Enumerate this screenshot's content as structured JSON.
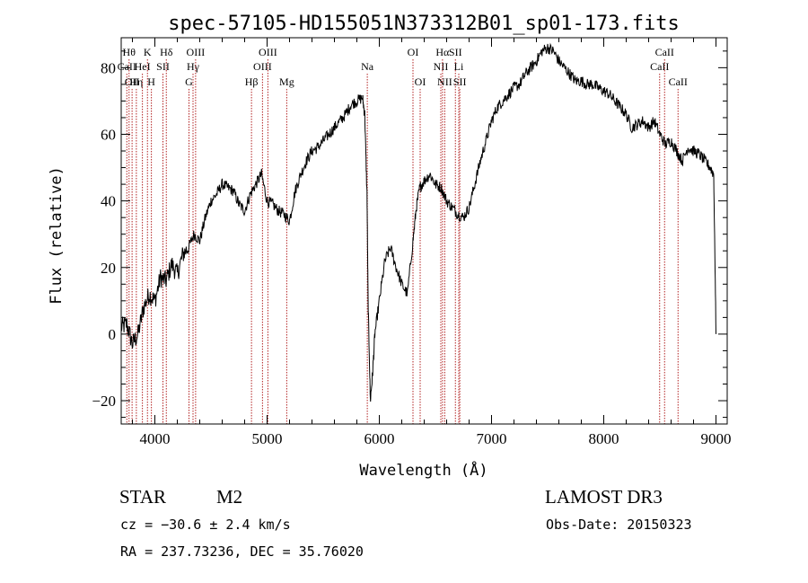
{
  "chart_data": {
    "type": "line",
    "title": "spec-57105-HD155051N373312B01_sp01-173.fits",
    "xlabel": "Wavelength (Å)",
    "ylabel": "Flux (relative)",
    "xlim": [
      3700,
      9100
    ],
    "ylim": [
      -27,
      89
    ],
    "xticks": [
      4000,
      5000,
      6000,
      7000,
      8000,
      9000
    ],
    "yticks": [
      -20,
      0,
      20,
      40,
      60,
      80
    ],
    "x": [
      3700,
      3750,
      3800,
      3850,
      3900,
      3950,
      4000,
      4050,
      4100,
      4150,
      4200,
      4250,
      4300,
      4350,
      4400,
      4450,
      4500,
      4550,
      4600,
      4650,
      4700,
      4750,
      4800,
      4850,
      4900,
      4950,
      5000,
      5050,
      5100,
      5150,
      5200,
      5250,
      5300,
      5350,
      5400,
      5450,
      5500,
      5550,
      5600,
      5650,
      5700,
      5750,
      5800,
      5850,
      5870,
      5890,
      5900,
      5920,
      5940,
      5960,
      6000,
      6050,
      6100,
      6150,
      6200,
      6250,
      6300,
      6330,
      6360,
      6400,
      6450,
      6500,
      6550,
      6600,
      6650,
      6700,
      6750,
      6800,
      6850,
      6900,
      6950,
      7000,
      7050,
      7100,
      7150,
      7200,
      7250,
      7300,
      7350,
      7400,
      7450,
      7500,
      7550,
      7600,
      7650,
      7700,
      7750,
      7800,
      7850,
      7900,
      7950,
      8000,
      8050,
      8100,
      8150,
      8200,
      8250,
      8300,
      8350,
      8400,
      8450,
      8500,
      8550,
      8600,
      8650,
      8700,
      8750,
      8800,
      8850,
      8900,
      8950,
      8980,
      9000
    ],
    "y": [
      2,
      3,
      -3,
      0,
      8,
      12,
      10,
      17,
      16,
      21,
      18,
      24,
      26,
      30,
      28,
      35,
      40,
      42,
      45,
      44,
      43,
      39,
      37,
      42,
      45,
      48,
      40,
      39,
      37,
      36,
      34,
      43,
      48,
      52,
      55,
      56,
      58,
      60,
      62,
      64,
      66,
      69,
      70,
      71,
      66,
      42,
      10,
      -20,
      -12,
      0,
      10,
      22,
      26,
      20,
      15,
      12,
      28,
      38,
      44,
      46,
      48,
      45,
      44,
      40,
      38,
      36,
      35,
      38,
      45,
      52,
      58,
      64,
      68,
      70,
      72,
      74,
      75,
      78,
      80,
      82,
      85,
      86,
      85,
      82,
      80,
      78,
      76,
      76,
      75,
      75,
      74,
      73,
      72,
      70,
      68,
      66,
      62,
      63,
      64,
      62,
      64,
      60,
      57,
      58,
      55,
      52,
      56,
      55,
      54,
      52,
      50,
      48,
      0
    ],
    "lines": [
      {
        "x": 3750,
        "label": "CaII",
        "row": 2
      },
      {
        "x": 3770,
        "label": "Hθ",
        "row": 1
      },
      {
        "x": 3797,
        "label": "OII",
        "row": 3
      },
      {
        "x": 3835,
        "label": "Hη",
        "row": 3
      },
      {
        "x": 3889,
        "label": "HeI",
        "row": 2
      },
      {
        "x": 3934,
        "label": "K",
        "row": 1
      },
      {
        "x": 3969,
        "label": "H",
        "row": 3
      },
      {
        "x": 4072,
        "label": "SII",
        "row": 2
      },
      {
        "x": 4102,
        "label": "Hδ",
        "row": 1
      },
      {
        "x": 4304,
        "label": "G",
        "row": 3
      },
      {
        "x": 4340,
        "label": "Hγ",
        "row": 2
      },
      {
        "x": 4363,
        "label": "OIII",
        "row": 1
      },
      {
        "x": 4861,
        "label": "Hβ",
        "row": 3
      },
      {
        "x": 4959,
        "label": "OIII",
        "row": 2
      },
      {
        "x": 5007,
        "label": "OIII",
        "row": 1
      },
      {
        "x": 5175,
        "label": "Mg",
        "row": 3
      },
      {
        "x": 5893,
        "label": "Na",
        "row": 2
      },
      {
        "x": 6300,
        "label": "OI",
        "row": 1
      },
      {
        "x": 6364,
        "label": "OI",
        "row": 3
      },
      {
        "x": 6548,
        "label": "NII",
        "row": 2
      },
      {
        "x": 6563,
        "label": "Hα",
        "row": 1
      },
      {
        "x": 6583,
        "label": "NII",
        "row": 3
      },
      {
        "x": 6678,
        "label": "SII",
        "row": 1
      },
      {
        "x": 6708,
        "label": "Li",
        "row": 2
      },
      {
        "x": 6717,
        "label": "SII",
        "row": 3
      },
      {
        "x": 8498,
        "label": "CaII",
        "row": 2
      },
      {
        "x": 8542,
        "label": "CaII",
        "row": 1
      },
      {
        "x": 8662,
        "label": "CaII",
        "row": 3
      }
    ],
    "line_color": "#b22222",
    "series_color": "#000000"
  },
  "info": {
    "class": "STAR",
    "subclass": "M2",
    "survey": "LAMOST DR3",
    "cz": "cz = −30.6 ± 2.4 km/s",
    "obs_date": "Obs-Date: 20150323",
    "coords": "RA = 237.73236, DEC =  35.76020"
  }
}
